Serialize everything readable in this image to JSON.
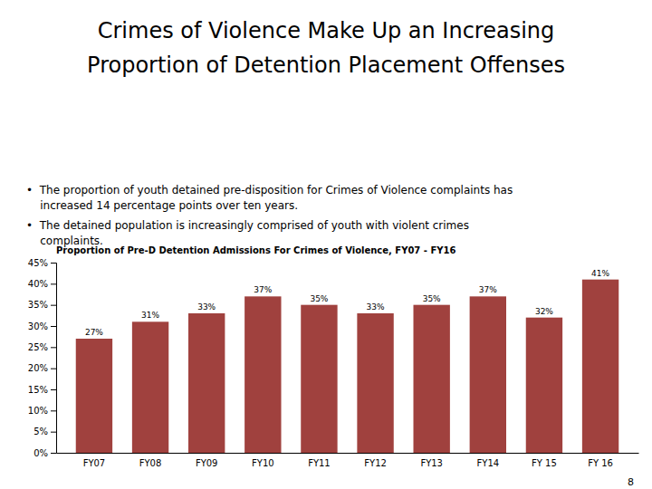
{
  "title_lines": [
    "Crimes of Violence Make Up an Increasing",
    "Proportion of Detention Placement Offenses"
  ],
  "bullets": [
    "•  The proportion of youth detained pre-disposition for Crimes of Violence complaints has",
    "    increased 14 percentage points over ten years.",
    "•  The detained population is increasingly comprised of youth with violent crimes",
    "    complaints."
  ],
  "page_number": "8",
  "chart_data": {
    "type": "bar",
    "title": "Proportion of Pre-D Detention Admissions For Crimes of Violence, FY07 - FY16",
    "categories": [
      "FY07",
      "FY08",
      "FY09",
      "FY10",
      "FY11",
      "FY12",
      "FY13",
      "FY14",
      "FY 15",
      "FY 16"
    ],
    "values": [
      0.27,
      0.31,
      0.33,
      0.37,
      0.35,
      0.33,
      0.35,
      0.37,
      0.32,
      0.41
    ],
    "value_labels": [
      "27%",
      "31%",
      "33%",
      "37%",
      "35%",
      "33%",
      "35%",
      "37%",
      "32%",
      "41%"
    ],
    "data_labels": true,
    "color": "#A0413E",
    "ylim": [
      0,
      0.45
    ],
    "yticks": [
      {
        "value": 0,
        "label": "0%"
      },
      {
        "value": 0.05,
        "label": "5%"
      },
      {
        "value": 0.1,
        "label": "10%"
      },
      {
        "value": 0.15,
        "label": "15%"
      },
      {
        "value": 0.2,
        "label": "20%"
      },
      {
        "value": 0.25,
        "label": "25%"
      },
      {
        "value": 0.3,
        "label": "30%"
      },
      {
        "value": 0.35,
        "label": "35%"
      },
      {
        "value": 0.4,
        "label": "40%"
      },
      {
        "value": 0.45,
        "label": "45%"
      }
    ],
    "grid": false
  }
}
